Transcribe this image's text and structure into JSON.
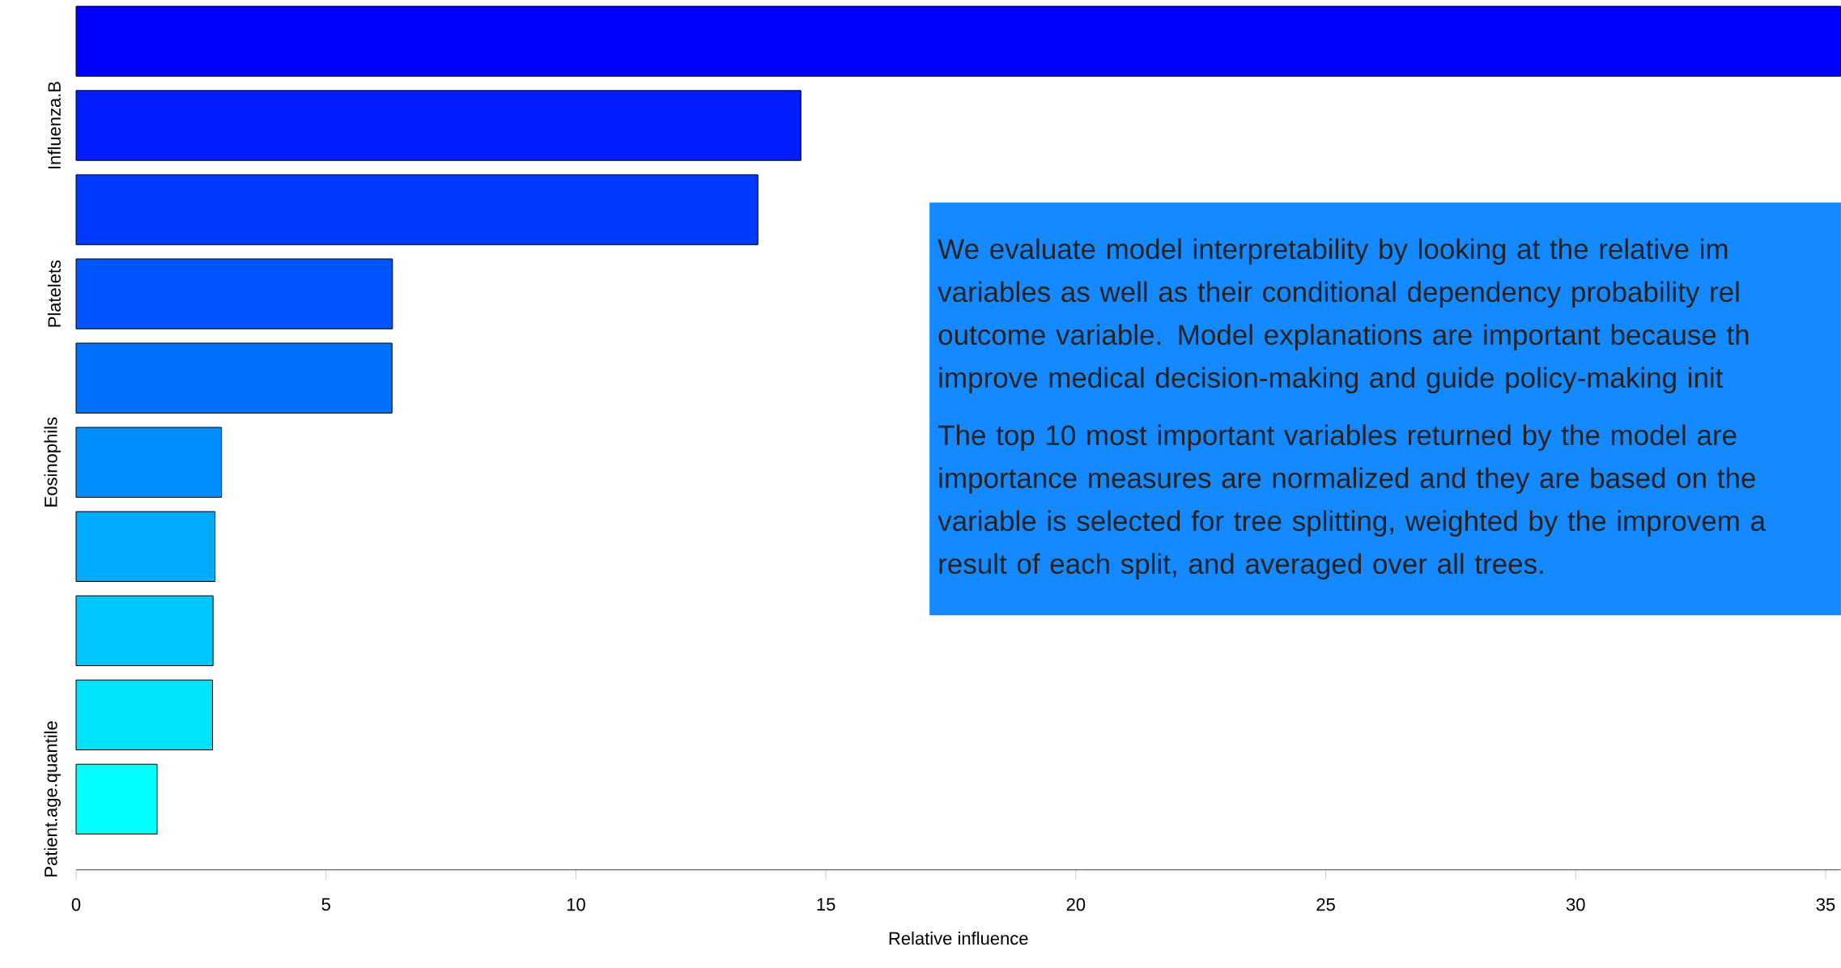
{
  "chart_data": {
    "type": "bar",
    "orientation": "horizontal",
    "categories": [
      null,
      "Influenza.B",
      null,
      "Platelets",
      null,
      "Eosinophils",
      null,
      null,
      null,
      "Patient.age.quantile"
    ],
    "values": [
      35.3,
      14.5,
      13.64,
      6.33,
      6.32,
      2.91,
      2.78,
      2.74,
      2.73,
      1.62
    ],
    "colors": [
      "#0000ff",
      "#001cff",
      "#0039ff",
      "#0055ff",
      "#0071ff",
      "#008eff",
      "#00aaff",
      "#00c6ff",
      "#00e3ff",
      "#00ffff"
    ],
    "xlim": [
      0,
      35.3
    ],
    "xticks": [
      0,
      5,
      10,
      15,
      20,
      25,
      30,
      35
    ],
    "xlabel": "Relative influence",
    "annotations": [
      "We evaluate model interpretability by looking at the relative im variables as well as their conditional dependency probability rel outcome variable. Model explanations are important because th improve medical decision-making and guide policy-making init",
      "The top 10 most important variables returned by the model are importance measures are normalized and they are based on the variable is selected for tree splitting, weighted by the improvem a result of each split, and averaged over all trees."
    ]
  }
}
